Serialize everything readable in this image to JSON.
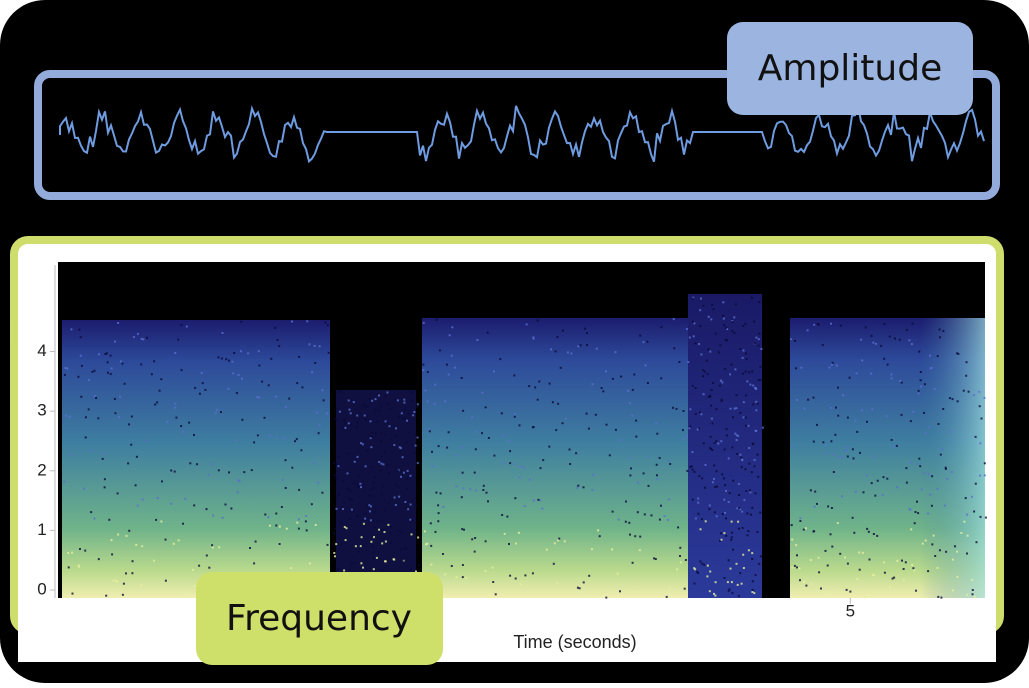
{
  "amplitude": {
    "label": "Amplitude"
  },
  "frequency": {
    "label": "Frequency",
    "yticks": [
      0,
      1,
      2,
      3,
      4
    ],
    "ylim": [
      0,
      5.2
    ],
    "xticks": [
      5
    ],
    "xlim": [
      0,
      5.85
    ],
    "x_label": "Time (seconds)"
  }
}
